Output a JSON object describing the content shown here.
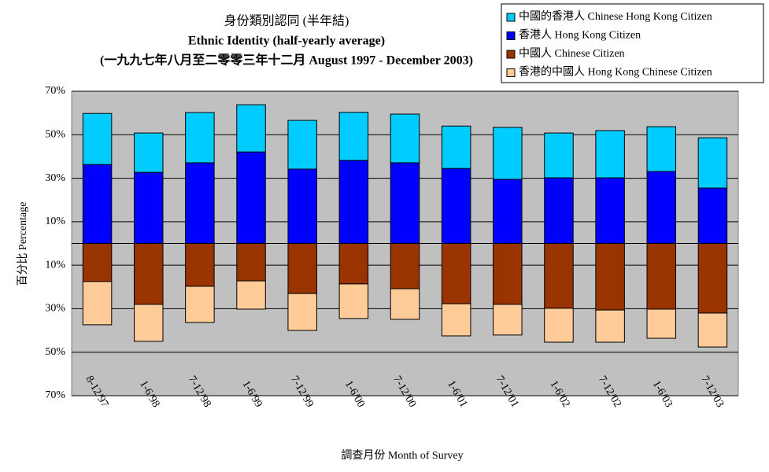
{
  "chart_data": {
    "type": "bar",
    "title": "身份類別認同 (半年結)",
    "subtitles": [
      "Ethnic Identity (half-yearly average)",
      "(一九九七年八月至二零零三年十二月 August 1997 - December 2003)"
    ],
    "x_label": "調查月份 Month of Survey",
    "y_label": "百分比 Percentage",
    "categories": [
      "8-12/97",
      "1-6/98",
      "7-12/98",
      "1-6/99",
      "7-12/99",
      "1-6/00",
      "7-12/00",
      "1-6/01",
      "7-12/01",
      "1-6/02",
      "7-12/02",
      "1-6/03",
      "7-12/03"
    ],
    "series": [
      {
        "name": "中國的香港人 Chinese Hong Kong Citizen",
        "color": "#00ccff",
        "values": [
          23.5,
          18.1,
          23.1,
          21.7,
          22.4,
          22.1,
          22.4,
          19.5,
          23.9,
          20.6,
          21.7,
          20.6,
          23.1
        ]
      },
      {
        "name": "香港人 Hong Kong Citizen",
        "color": "#0000ff",
        "values": [
          36.3,
          32.7,
          37.1,
          42.1,
          34.2,
          38.2,
          37.1,
          34.5,
          29.5,
          30.2,
          30.2,
          33.1,
          25.5
        ]
      },
      {
        "name": "中國人 Chinese Citizen",
        "color": "#993300",
        "values": [
          -17.5,
          -28.0,
          -19.7,
          -17.2,
          -23.0,
          -18.6,
          -20.8,
          -27.7,
          -28.0,
          -29.8,
          -30.6,
          -30.2,
          -32.0
        ]
      },
      {
        "name": "香港的中國人 Hong Kong Chinese Citizen",
        "color": "#ffcc99",
        "values": [
          -19.9,
          -17.0,
          -16.6,
          -13.0,
          -17.0,
          -15.9,
          -14.1,
          -14.8,
          -14.1,
          -15.6,
          -14.8,
          -13.4,
          -15.6
        ]
      }
    ],
    "ylim": [
      -70,
      70
    ],
    "yticks": [
      {
        "value": 70,
        "label": "70%"
      },
      {
        "value": 50,
        "label": "50%"
      },
      {
        "value": 30,
        "label": "30%"
      },
      {
        "value": 10,
        "label": "10%"
      },
      {
        "value": -10,
        "label": "10%"
      },
      {
        "value": -30,
        "label": "30%"
      },
      {
        "value": -50,
        "label": "50%"
      },
      {
        "value": -70,
        "label": "70%"
      }
    ],
    "grid": true,
    "legend": "top-right"
  }
}
